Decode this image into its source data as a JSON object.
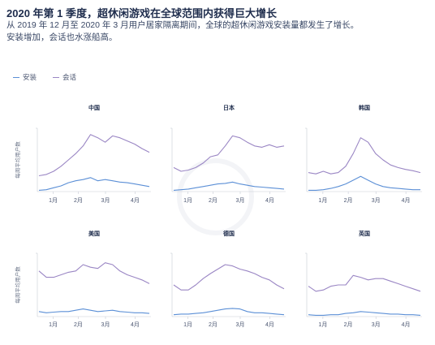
{
  "header": {
    "title": "2020 年第 1 季度，超休闲游戏在全球范围内获得巨大增长",
    "subtitle_line1": "从 2019 年 12 月至 2020 年 3 月用户居家隔离期间，全球的超休闲游戏安装量都发生了增长。",
    "subtitle_line2": "安装增加，会话也水涨船高。"
  },
  "legend": [
    {
      "label": "安装",
      "color": "#5b8fd6"
    },
    {
      "label": "会话",
      "color": "#9a86c4"
    }
  ],
  "chart_data": [
    {
      "type": "line",
      "title": "中国",
      "ylabel": "每周平均用户数",
      "x_ticks": [
        "1月",
        "2月",
        "3月",
        "4月"
      ],
      "series": [
        {
          "name": "安装",
          "color": "#5b8fd6",
          "values": [
            0.02,
            0.03,
            0.06,
            0.09,
            0.14,
            0.17,
            0.19,
            0.22,
            0.17,
            0.19,
            0.17,
            0.15,
            0.14,
            0.12,
            0.1,
            0.08
          ]
        },
        {
          "name": "会话",
          "color": "#9a86c4",
          "values": [
            0.25,
            0.27,
            0.32,
            0.4,
            0.5,
            0.6,
            0.72,
            0.9,
            0.85,
            0.78,
            0.88,
            0.85,
            0.8,
            0.75,
            0.68,
            0.62
          ]
        }
      ]
    },
    {
      "type": "line",
      "title": "日本",
      "ylabel": "",
      "x_ticks": [
        "1月",
        "2月",
        "3月",
        "4月"
      ],
      "series": [
        {
          "name": "安装",
          "color": "#5b8fd6",
          "values": [
            0.02,
            0.03,
            0.04,
            0.06,
            0.08,
            0.1,
            0.12,
            0.13,
            0.15,
            0.12,
            0.1,
            0.08,
            0.07,
            0.06,
            0.05,
            0.04
          ]
        },
        {
          "name": "会话",
          "color": "#9a86c4",
          "values": [
            0.38,
            0.32,
            0.34,
            0.38,
            0.45,
            0.55,
            0.58,
            0.72,
            0.88,
            0.85,
            0.78,
            0.72,
            0.7,
            0.74,
            0.7,
            0.72
          ]
        }
      ]
    },
    {
      "type": "line",
      "title": "韩国",
      "ylabel": "",
      "x_ticks": [
        "1月",
        "2月",
        "3月",
        "4月"
      ],
      "series": [
        {
          "name": "安装",
          "color": "#5b8fd6",
          "values": [
            0.02,
            0.02,
            0.03,
            0.05,
            0.08,
            0.12,
            0.18,
            0.24,
            0.18,
            0.12,
            0.08,
            0.06,
            0.05,
            0.04,
            0.03,
            0.03
          ]
        },
        {
          "name": "会话",
          "color": "#9a86c4",
          "values": [
            0.3,
            0.28,
            0.32,
            0.28,
            0.3,
            0.4,
            0.6,
            0.85,
            0.78,
            0.6,
            0.5,
            0.42,
            0.38,
            0.35,
            0.33,
            0.3
          ]
        }
      ]
    },
    {
      "type": "line",
      "title": "美国",
      "ylabel": "每周平均用户数",
      "x_ticks": [
        "1月",
        "2月",
        "3月",
        "4月"
      ],
      "series": [
        {
          "name": "安装",
          "color": "#5b8fd6",
          "values": [
            0.08,
            0.06,
            0.07,
            0.08,
            0.08,
            0.1,
            0.12,
            0.1,
            0.08,
            0.09,
            0.1,
            0.08,
            0.07,
            0.06,
            0.06,
            0.05
          ]
        },
        {
          "name": "会话",
          "color": "#9a86c4",
          "values": [
            0.72,
            0.62,
            0.62,
            0.66,
            0.7,
            0.72,
            0.82,
            0.78,
            0.76,
            0.85,
            0.82,
            0.72,
            0.66,
            0.62,
            0.58,
            0.52
          ]
        }
      ]
    },
    {
      "type": "line",
      "title": "德国",
      "ylabel": "",
      "x_ticks": [
        "1月",
        "2月",
        "3月",
        "4月"
      ],
      "series": [
        {
          "name": "安装",
          "color": "#5b8fd6",
          "values": [
            0.03,
            0.04,
            0.04,
            0.05,
            0.06,
            0.08,
            0.1,
            0.12,
            0.13,
            0.12,
            0.08,
            0.06,
            0.06,
            0.05,
            0.04,
            0.03
          ]
        },
        {
          "name": "会话",
          "color": "#9a86c4",
          "values": [
            0.5,
            0.42,
            0.42,
            0.5,
            0.6,
            0.68,
            0.75,
            0.82,
            0.8,
            0.75,
            0.72,
            0.68,
            0.62,
            0.58,
            0.5,
            0.44
          ]
        }
      ]
    },
    {
      "type": "line",
      "title": "英国",
      "ylabel": "",
      "x_ticks": [
        "1月",
        "2月",
        "3月",
        "4月"
      ],
      "series": [
        {
          "name": "安装",
          "color": "#5b8fd6",
          "values": [
            0.03,
            0.02,
            0.02,
            0.03,
            0.03,
            0.05,
            0.06,
            0.08,
            0.07,
            0.06,
            0.05,
            0.04,
            0.04,
            0.03,
            0.03,
            0.02
          ]
        },
        {
          "name": "会话",
          "color": "#9a86c4",
          "values": [
            0.48,
            0.4,
            0.42,
            0.48,
            0.5,
            0.5,
            0.65,
            0.62,
            0.58,
            0.6,
            0.6,
            0.56,
            0.52,
            0.48,
            0.44,
            0.4
          ]
        }
      ]
    }
  ]
}
